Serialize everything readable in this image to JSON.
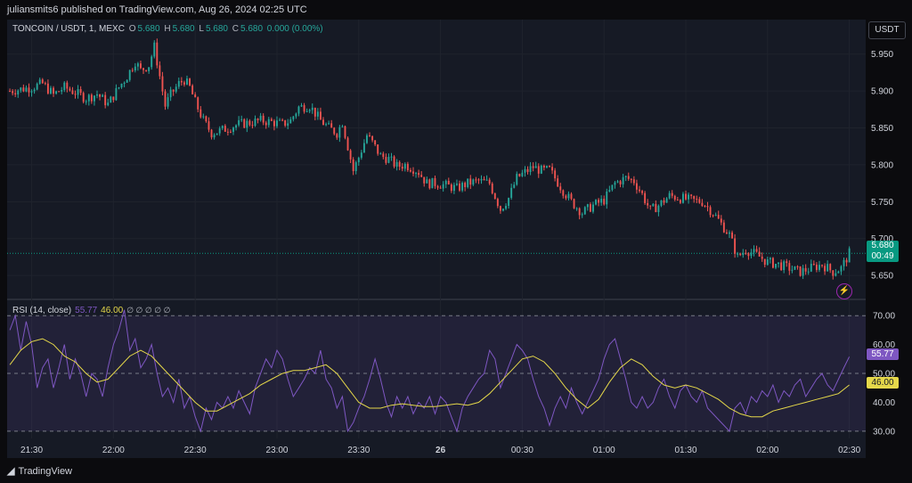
{
  "header": {
    "publisher": "juliansmits6 published on TradingView.com, Aug 26, 2024 02:25 UTC"
  },
  "legend": {
    "symbol": "TONCOIN / USDT, 1, MEXC",
    "o_label": "O",
    "o": "5.680",
    "h_label": "H",
    "h": "5.680",
    "l_label": "L",
    "l": "5.680",
    "c_label": "C",
    "c": "5.680",
    "change": "0.000 (0.00%)"
  },
  "currency": "USDT",
  "price_tag": {
    "price": "5.680",
    "countdown": "00:49"
  },
  "rsi_legend": {
    "label": "RSI (14, close)",
    "rsi": "55.77",
    "ma": "46.00",
    "na": "∅ ∅ ∅ ∅ ∅"
  },
  "rsi_tags": {
    "rsi": "55.77",
    "ma": "46.00"
  },
  "footer": {
    "brand": "TradingView"
  },
  "colors": {
    "up": "#26a69a",
    "down": "#ef5350",
    "rsi": "#7e57c2",
    "ma": "#e5d84a",
    "price_tag": "#089981"
  },
  "chart_data": {
    "type": "candlestick",
    "price_axis": {
      "ticks": [
        5.95,
        5.9,
        5.85,
        5.8,
        5.75,
        5.7,
        5.65
      ],
      "tick_labels": [
        "5.950",
        "5.900",
        "5.850",
        "5.800",
        "5.750",
        "5.700",
        "5.650"
      ],
      "ylim": [
        5.62,
        5.975
      ]
    },
    "rsi_axis": {
      "ticks": [
        70,
        60,
        50,
        40,
        30
      ],
      "tick_labels": [
        "70.00",
        "60.00",
        "50.00",
        "40.00",
        "30.00"
      ],
      "ylim": [
        27.5,
        75
      ],
      "bands": [
        30,
        50,
        70
      ]
    },
    "time_axis": {
      "labels": [
        "21:30",
        "22:00",
        "22:30",
        "23:00",
        "23:30",
        "26",
        "00:30",
        "01:00",
        "01:30",
        "02:00",
        "02:30"
      ],
      "minutes": [
        0,
        30,
        60,
        90,
        120,
        150,
        180,
        210,
        240,
        270,
        300
      ],
      "xlim": [
        -9,
        306
      ]
    },
    "close_path": [
      [
        -8,
        5.9
      ],
      [
        0,
        5.905
      ],
      [
        4,
        5.91
      ],
      [
        8,
        5.895
      ],
      [
        12,
        5.905
      ],
      [
        16,
        5.898
      ],
      [
        20,
        5.89
      ],
      [
        24,
        5.896
      ],
      [
        28,
        5.882
      ],
      [
        32,
        5.905
      ],
      [
        35,
        5.92
      ],
      [
        38,
        5.94
      ],
      [
        40,
        5.928
      ],
      [
        43,
        5.935
      ],
      [
        45,
        5.96
      ],
      [
        47,
        5.92
      ],
      [
        49,
        5.88
      ],
      [
        51,
        5.895
      ],
      [
        54,
        5.91
      ],
      [
        56,
        5.915
      ],
      [
        58,
        5.905
      ],
      [
        60,
        5.885
      ],
      [
        63,
        5.86
      ],
      [
        66,
        5.843
      ],
      [
        69,
        5.846
      ],
      [
        72,
        5.85
      ],
      [
        76,
        5.855
      ],
      [
        80,
        5.857
      ],
      [
        84,
        5.86
      ],
      [
        88,
        5.858
      ],
      [
        92,
        5.855
      ],
      [
        95,
        5.86
      ],
      [
        98,
        5.878
      ],
      [
        102,
        5.88
      ],
      [
        106,
        5.86
      ],
      [
        109,
        5.85
      ],
      [
        112,
        5.843
      ],
      [
        114,
        5.858
      ],
      [
        116,
        5.825
      ],
      [
        118,
        5.792
      ],
      [
        120,
        5.81
      ],
      [
        123,
        5.84
      ],
      [
        125,
        5.83
      ],
      [
        128,
        5.812
      ],
      [
        131,
        5.808
      ],
      [
        134,
        5.798
      ],
      [
        137,
        5.8
      ],
      [
        140,
        5.795
      ],
      [
        142,
        5.79
      ],
      [
        145,
        5.775
      ],
      [
        148,
        5.775
      ],
      [
        152,
        5.772
      ],
      [
        156,
        5.768
      ],
      [
        160,
        5.775
      ],
      [
        164,
        5.778
      ],
      [
        168,
        5.775
      ],
      [
        172,
        5.74
      ],
      [
        175,
        5.755
      ],
      [
        178,
        5.782
      ],
      [
        181,
        5.79
      ],
      [
        184,
        5.797
      ],
      [
        187,
        5.792
      ],
      [
        190,
        5.793
      ],
      [
        192,
        5.782
      ],
      [
        195,
        5.765
      ],
      [
        198,
        5.75
      ],
      [
        202,
        5.735
      ],
      [
        206,
        5.745
      ],
      [
        210,
        5.752
      ],
      [
        214,
        5.775
      ],
      [
        218,
        5.782
      ],
      [
        221,
        5.778
      ],
      [
        224,
        5.76
      ],
      [
        227,
        5.738
      ],
      [
        230,
        5.745
      ],
      [
        234,
        5.758
      ],
      [
        238,
        5.755
      ],
      [
        242,
        5.752
      ],
      [
        246,
        5.75
      ],
      [
        250,
        5.735
      ],
      [
        253,
        5.72
      ],
      [
        256,
        5.705
      ],
      [
        259,
        5.675
      ],
      [
        262,
        5.685
      ],
      [
        266,
        5.678
      ],
      [
        270,
        5.668
      ],
      [
        274,
        5.665
      ],
      [
        278,
        5.66
      ],
      [
        282,
        5.655
      ],
      [
        286,
        5.66
      ],
      [
        290,
        5.665
      ],
      [
        294,
        5.655
      ],
      [
        297,
        5.66
      ],
      [
        300,
        5.68
      ]
    ],
    "rsi_path": [
      [
        -8,
        65
      ],
      [
        -6,
        70
      ],
      [
        -4,
        58
      ],
      [
        -2,
        68
      ],
      [
        0,
        60
      ],
      [
        2,
        45
      ],
      [
        4,
        52
      ],
      [
        6,
        55
      ],
      [
        8,
        45
      ],
      [
        10,
        52
      ],
      [
        12,
        60
      ],
      [
        14,
        48
      ],
      [
        16,
        55
      ],
      [
        18,
        50
      ],
      [
        20,
        42
      ],
      [
        22,
        50
      ],
      [
        24,
        48
      ],
      [
        26,
        42
      ],
      [
        28,
        52
      ],
      [
        30,
        60
      ],
      [
        32,
        65
      ],
      [
        34,
        72
      ],
      [
        36,
        58
      ],
      [
        38,
        62
      ],
      [
        40,
        52
      ],
      [
        42,
        55
      ],
      [
        44,
        60
      ],
      [
        46,
        50
      ],
      [
        48,
        42
      ],
      [
        50,
        45
      ],
      [
        52,
        40
      ],
      [
        54,
        48
      ],
      [
        56,
        38
      ],
      [
        58,
        42
      ],
      [
        60,
        35
      ],
      [
        62,
        30
      ],
      [
        64,
        38
      ],
      [
        66,
        34
      ],
      [
        68,
        40
      ],
      [
        70,
        38
      ],
      [
        72,
        42
      ],
      [
        74,
        38
      ],
      [
        76,
        44
      ],
      [
        78,
        40
      ],
      [
        80,
        36
      ],
      [
        82,
        45
      ],
      [
        84,
        50
      ],
      [
        86,
        55
      ],
      [
        88,
        52
      ],
      [
        90,
        58
      ],
      [
        92,
        55
      ],
      [
        94,
        48
      ],
      [
        96,
        42
      ],
      [
        98,
        45
      ],
      [
        100,
        48
      ],
      [
        102,
        52
      ],
      [
        104,
        50
      ],
      [
        106,
        58
      ],
      [
        108,
        48
      ],
      [
        110,
        45
      ],
      [
        112,
        38
      ],
      [
        114,
        42
      ],
      [
        116,
        30
      ],
      [
        118,
        33
      ],
      [
        120,
        38
      ],
      [
        122,
        42
      ],
      [
        124,
        48
      ],
      [
        126,
        55
      ],
      [
        128,
        48
      ],
      [
        130,
        40
      ],
      [
        132,
        35
      ],
      [
        134,
        42
      ],
      [
        136,
        38
      ],
      [
        138,
        42
      ],
      [
        140,
        36
      ],
      [
        142,
        40
      ],
      [
        144,
        38
      ],
      [
        146,
        42
      ],
      [
        148,
        36
      ],
      [
        150,
        42
      ],
      [
        152,
        40
      ],
      [
        154,
        35
      ],
      [
        156,
        30
      ],
      [
        158,
        38
      ],
      [
        160,
        42
      ],
      [
        162,
        45
      ],
      [
        164,
        48
      ],
      [
        166,
        50
      ],
      [
        168,
        58
      ],
      [
        170,
        55
      ],
      [
        172,
        45
      ],
      [
        174,
        50
      ],
      [
        176,
        55
      ],
      [
        178,
        60
      ],
      [
        180,
        58
      ],
      [
        182,
        55
      ],
      [
        184,
        48
      ],
      [
        186,
        42
      ],
      [
        188,
        38
      ],
      [
        190,
        32
      ],
      [
        192,
        38
      ],
      [
        194,
        42
      ],
      [
        196,
        38
      ],
      [
        198,
        45
      ],
      [
        200,
        40
      ],
      [
        202,
        36
      ],
      [
        204,
        40
      ],
      [
        206,
        44
      ],
      [
        208,
        48
      ],
      [
        210,
        55
      ],
      [
        212,
        60
      ],
      [
        214,
        62
      ],
      [
        216,
        55
      ],
      [
        218,
        48
      ],
      [
        220,
        40
      ],
      [
        222,
        38
      ],
      [
        224,
        42
      ],
      [
        226,
        38
      ],
      [
        228,
        40
      ],
      [
        230,
        45
      ],
      [
        232,
        48
      ],
      [
        234,
        42
      ],
      [
        236,
        38
      ],
      [
        238,
        44
      ],
      [
        240,
        46
      ],
      [
        242,
        42
      ],
      [
        244,
        40
      ],
      [
        246,
        44
      ],
      [
        248,
        38
      ],
      [
        250,
        36
      ],
      [
        252,
        34
      ],
      [
        254,
        32
      ],
      [
        256,
        30
      ],
      [
        258,
        38
      ],
      [
        260,
        40
      ],
      [
        262,
        36
      ],
      [
        264,
        42
      ],
      [
        266,
        40
      ],
      [
        268,
        44
      ],
      [
        270,
        42
      ],
      [
        272,
        46
      ],
      [
        274,
        40
      ],
      [
        276,
        44
      ],
      [
        278,
        42
      ],
      [
        280,
        46
      ],
      [
        282,
        48
      ],
      [
        284,
        42
      ],
      [
        286,
        45
      ],
      [
        288,
        48
      ],
      [
        290,
        50
      ],
      [
        292,
        46
      ],
      [
        294,
        44
      ],
      [
        296,
        48
      ],
      [
        298,
        52
      ],
      [
        300,
        55.77
      ]
    ],
    "ma_path": [
      [
        -8,
        53
      ],
      [
        -4,
        58
      ],
      [
        0,
        61
      ],
      [
        4,
        62
      ],
      [
        8,
        60
      ],
      [
        12,
        56
      ],
      [
        16,
        54
      ],
      [
        20,
        50
      ],
      [
        24,
        47
      ],
      [
        28,
        48
      ],
      [
        32,
        52
      ],
      [
        36,
        56
      ],
      [
        40,
        58
      ],
      [
        44,
        56
      ],
      [
        48,
        52
      ],
      [
        52,
        48
      ],
      [
        56,
        44
      ],
      [
        60,
        40
      ],
      [
        64,
        37
      ],
      [
        68,
        37
      ],
      [
        72,
        39
      ],
      [
        76,
        41
      ],
      [
        80,
        43
      ],
      [
        84,
        46
      ],
      [
        88,
        48
      ],
      [
        92,
        50
      ],
      [
        96,
        51
      ],
      [
        100,
        51
      ],
      [
        104,
        52
      ],
      [
        108,
        53
      ],
      [
        112,
        50
      ],
      [
        116,
        45
      ],
      [
        120,
        40
      ],
      [
        124,
        38
      ],
      [
        128,
        38
      ],
      [
        132,
        39
      ],
      [
        136,
        39.5
      ],
      [
        140,
        39
      ],
      [
        144,
        38.5
      ],
      [
        148,
        38.5
      ],
      [
        152,
        39
      ],
      [
        156,
        39.5
      ],
      [
        160,
        39
      ],
      [
        164,
        40
      ],
      [
        168,
        43
      ],
      [
        172,
        47
      ],
      [
        176,
        51
      ],
      [
        180,
        55
      ],
      [
        184,
        56
      ],
      [
        188,
        54
      ],
      [
        192,
        50
      ],
      [
        196,
        45
      ],
      [
        200,
        41
      ],
      [
        204,
        38
      ],
      [
        208,
        41
      ],
      [
        212,
        47
      ],
      [
        216,
        52
      ],
      [
        220,
        55
      ],
      [
        224,
        53
      ],
      [
        228,
        49
      ],
      [
        232,
        46
      ],
      [
        236,
        45
      ],
      [
        240,
        46
      ],
      [
        244,
        45
      ],
      [
        248,
        43
      ],
      [
        252,
        41
      ],
      [
        256,
        38
      ],
      [
        260,
        36
      ],
      [
        264,
        35
      ],
      [
        268,
        35
      ],
      [
        272,
        37
      ],
      [
        276,
        38
      ],
      [
        280,
        39
      ],
      [
        284,
        40
      ],
      [
        288,
        41
      ],
      [
        292,
        42
      ],
      [
        296,
        43
      ],
      [
        300,
        46
      ]
    ]
  }
}
